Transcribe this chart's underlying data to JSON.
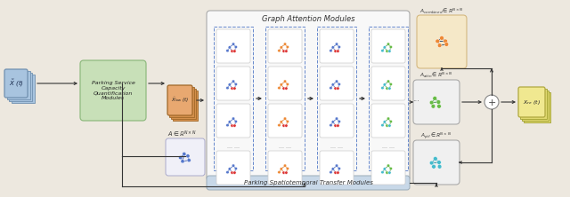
{
  "fig_bg": "#ede8df",
  "input_bg": "#a8c4df",
  "input_edge": "#7090b0",
  "input_label": "$\\tilde{X}$ (t)",
  "green_bg": "#c8e0b8",
  "green_edge": "#90bb80",
  "green_text": "Parking Service\nCapacity\nQuantification\nModules",
  "xlow_bg": "#d4904c",
  "xlow_edge": "#a06828",
  "xlow_bg2": "#e8a870",
  "xlow_label": "$\\tilde{X}_{low}$ (t)",
  "A_label": "$A \\in \\mathbb{R}^{N\\times N}$",
  "A_box_bg": "#f0f0f8",
  "A_box_edge": "#aaaacc",
  "gam_bg": "#f8f8f8",
  "gam_edge": "#aaaaaa",
  "gam_title": "Graph Attention Modules",
  "dashed_col_color": "#6688cc",
  "cell_bg": "#ffffff",
  "cell_edge": "#cccccc",
  "psm_bg": "#c8d8e8",
  "psm_edge": "#9aabb8",
  "psm_label": "Parking Spatiotemporal Transfer Modules",
  "Acomb_label": "$A_{combined} \\in \\mathbb{R}^{N\\times N}$",
  "Acomb_bg": "#f5e8c8",
  "Acomb_edge": "#d4b880",
  "Aattn_label": "$A_{attn} \\in \\mathbb{R}^{N\\times N}$",
  "Aattn_bg": "#f0f0f0",
  "Aattn_edge": "#aaaaaa",
  "Aptf_label": "$A_{ptf} \\in \\mathbb{R}^{N\\times N}$",
  "Aptf_bg": "#f0f0f0",
  "Aptf_edge": "#aaaaaa",
  "xre_bg": "#f0e890",
  "xre_edge": "#b0a840",
  "xre_label": "$X_{re}$ (t)",
  "arrow_color": "#333333",
  "node_blue": "#5577cc",
  "node_red": "#dd3333",
  "node_orange": "#ee8833",
  "node_green": "#66bb44",
  "node_teal": "#44bbcc",
  "edge_blue": "#3355aa",
  "edge_orange": "#cc6611",
  "edge_green": "#338844",
  "edge_teal": "#228899",
  "edge_dark_blue": "#335577"
}
